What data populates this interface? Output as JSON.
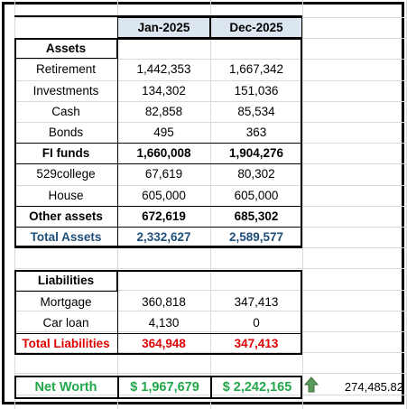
{
  "columns": [
    "Jan-2025",
    "Dec-2025"
  ],
  "assets": {
    "title": "Assets",
    "rows": [
      {
        "label": "Retirement",
        "values": [
          "1,442,353",
          "1,667,342"
        ]
      },
      {
        "label": "Investments",
        "values": [
          "134,302",
          "151,036"
        ]
      },
      {
        "label": "Cash",
        "values": [
          "82,858",
          "85,534"
        ]
      },
      {
        "label": "Bonds",
        "values": [
          "495",
          "363"
        ]
      },
      {
        "label": "FI funds",
        "values": [
          "1,660,008",
          "1,904,276"
        ]
      },
      {
        "label": "529college",
        "values": [
          "67,619",
          "80,302"
        ]
      },
      {
        "label": "House",
        "values": [
          "605,000",
          "605,000"
        ]
      },
      {
        "label": "Other assets",
        "values": [
          "672,619",
          "685,302"
        ]
      },
      {
        "label": "Total Assets",
        "values": [
          "2,332,627",
          "2,589,577"
        ]
      }
    ]
  },
  "liabilities": {
    "title": "Liabilities",
    "rows": [
      {
        "label": "Mortgage",
        "values": [
          "360,818",
          "347,413"
        ]
      },
      {
        "label": "Car loan",
        "values": [
          "4,130",
          "0"
        ]
      },
      {
        "label": "Total Liabilities",
        "values": [
          "364,948",
          "347,413"
        ]
      }
    ]
  },
  "net_worth": {
    "label": "Net Worth",
    "values": [
      "$ 1,967,679",
      "$ 2,242,165"
    ],
    "change": "274,485.82"
  }
}
